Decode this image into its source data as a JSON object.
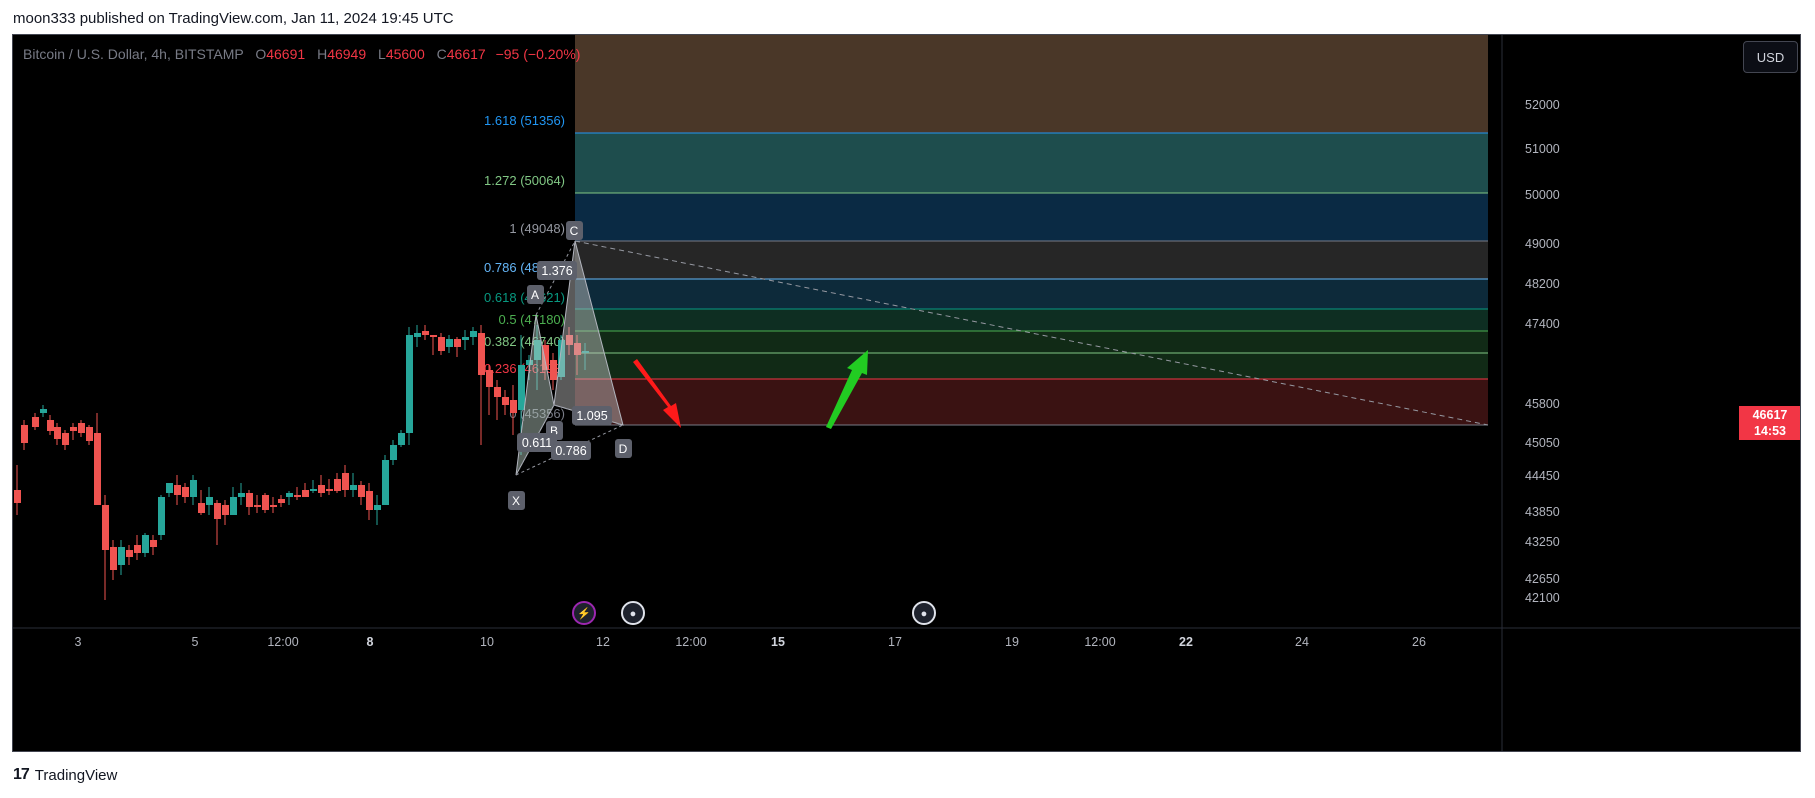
{
  "publication": {
    "text": "moon333 published on TradingView.com, Jan 11, 2024 19:45 UTC"
  },
  "legend": {
    "symbol": "Bitcoin / U.S. Dollar, 4h, BITSTAMP",
    "o_label": "O",
    "o_value": "46691",
    "h_label": "H",
    "h_value": "46949",
    "l_label": "L",
    "l_value": "45600",
    "c_label": "C",
    "c_value": "46617",
    "change": "−95 (−0.20%)"
  },
  "currency_button": {
    "label": "USD"
  },
  "last_price": {
    "value": "46617",
    "countdown": "14:53"
  },
  "price_axis": {
    "ticks": [
      "52000",
      "51000",
      "50000",
      "49000",
      "48200",
      "47400",
      "45800",
      "45050",
      "44450",
      "43850",
      "43250",
      "42650",
      "42100"
    ]
  },
  "time_axis": {
    "ticks": [
      {
        "label": "3",
        "bold": false
      },
      {
        "label": "5",
        "bold": false
      },
      {
        "label": "12:00",
        "bold": false
      },
      {
        "label": "8",
        "bold": true
      },
      {
        "label": "10",
        "bold": false
      },
      {
        "label": "12",
        "bold": false
      },
      {
        "label": "12:00",
        "bold": false
      },
      {
        "label": "15",
        "bold": true
      },
      {
        "label": "17",
        "bold": false
      },
      {
        "label": "19",
        "bold": false
      },
      {
        "label": "12:00",
        "bold": false
      },
      {
        "label": "22",
        "bold": true
      },
      {
        "label": "24",
        "bold": false
      },
      {
        "label": "26",
        "bold": false
      }
    ]
  },
  "fib_levels": [
    {
      "label": "1.618 (51356)",
      "color": "#2196f3"
    },
    {
      "label": "1.272 (50064)",
      "color": "#81c784"
    },
    {
      "label": "1 (49048)",
      "color": "#9598a1"
    },
    {
      "label": "0.786 (48246)",
      "color": "#64b5f6"
    },
    {
      "label": "0.618 (47621)",
      "color": "#089981"
    },
    {
      "label": "0.5 (47180)",
      "color": "#4caf50"
    },
    {
      "label": "0.382 (46740)",
      "color": "#81c784"
    },
    {
      "label": "0.236 (46193)",
      "color": "#f23645"
    },
    {
      "label": "0 (45356)",
      "color": "#787b86"
    }
  ],
  "pattern_points": [
    "X",
    "A",
    "B",
    "C",
    "D"
  ],
  "pattern_ratios": [
    "0.611",
    "1.376",
    "0.786",
    "1.095"
  ],
  "footer": {
    "brand": "TradingView"
  }
}
